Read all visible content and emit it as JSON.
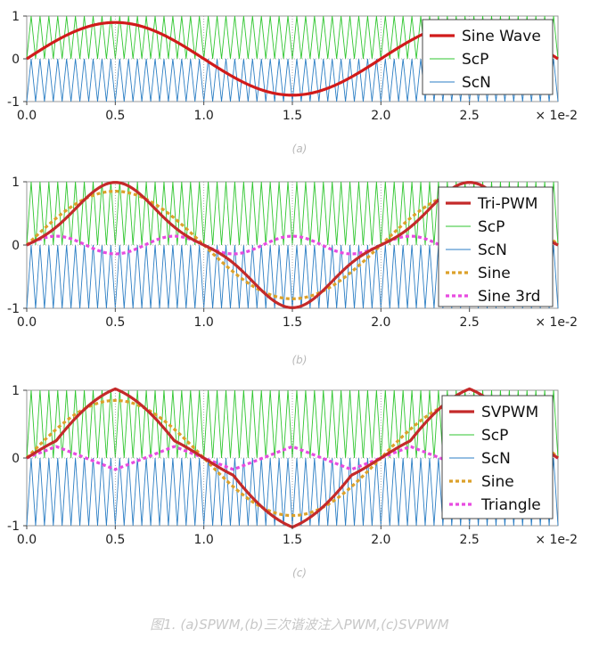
{
  "colors": {
    "sine": "#d11b1b",
    "scp": "#2fc62f",
    "scn": "#2b7ec4",
    "sine_dashed": "#dca12a",
    "third": "#e84be0",
    "grid": "#9a9a9a"
  },
  "captions": {
    "a": "(a)",
    "b": "(b)",
    "c": "(c)",
    "figure": "图1. (a)SPWM,(b)三次谐波注入PWM,(c)SVPWM"
  },
  "chart_data": [
    {
      "type": "line",
      "panel": "a",
      "x_range": [
        0,
        0.03
      ],
      "ylim": [
        -1,
        1
      ],
      "x_ticks": [
        "0.0",
        "0.5",
        "1.0",
        "1.5",
        "2.0",
        "2.5"
      ],
      "x_tick_values": [
        0,
        0.005,
        0.01,
        0.015,
        0.02,
        0.025
      ],
      "x_multiplier": "× 1e-2",
      "y_ticks": [
        "1",
        "0",
        "-1"
      ],
      "legend_position": "top-right",
      "carrier_frequency_hz": 2000,
      "series": [
        {
          "name": "Sine Wave",
          "style": "solid-thick",
          "color": "#d11b1b",
          "amplitude": 0.85,
          "frequency_hz": 50
        },
        {
          "name": "ScP",
          "style": "carrier-positive",
          "color": "#2fc62f",
          "range": [
            0,
            1
          ]
        },
        {
          "name": "ScN",
          "style": "carrier-negative",
          "color": "#2b7ec4",
          "range": [
            -1,
            0
          ]
        }
      ]
    },
    {
      "type": "line",
      "panel": "b",
      "x_range": [
        0,
        0.03
      ],
      "ylim": [
        -1,
        1
      ],
      "x_ticks": [
        "0.0",
        "0.5",
        "1.0",
        "1.5",
        "2.0",
        "2.5"
      ],
      "x_tick_values": [
        0,
        0.005,
        0.01,
        0.015,
        0.02,
        0.025
      ],
      "x_multiplier": "× 1e-2",
      "y_ticks": [
        "1",
        "0",
        "-1"
      ],
      "legend_position": "right",
      "carrier_frequency_hz": 2000,
      "series": [
        {
          "name": "Tri-PWM",
          "style": "solid-thick",
          "color": "#c42a2a",
          "composition": "Sine - Sine 3rd"
        },
        {
          "name": "ScP",
          "style": "carrier-positive",
          "color": "#2fc62f",
          "range": [
            0,
            1
          ]
        },
        {
          "name": "ScN",
          "style": "carrier-negative",
          "color": "#2b7ec4",
          "range": [
            -1,
            0
          ]
        },
        {
          "name": "Sine",
          "style": "dotted-thick",
          "color": "#dca12a",
          "amplitude": 0.85,
          "frequency_hz": 50
        },
        {
          "name": "Sine 3rd",
          "style": "dotted-thick",
          "color": "#e84be0",
          "amplitude": 0.14,
          "frequency_hz": 150
        }
      ]
    },
    {
      "type": "line",
      "panel": "c",
      "x_range": [
        0,
        0.03
      ],
      "ylim": [
        -1,
        1
      ],
      "x_ticks": [
        "0.0",
        "0.5",
        "1.0",
        "1.5",
        "2.0",
        "2.5"
      ],
      "x_tick_values": [
        0,
        0.005,
        0.01,
        0.015,
        0.02,
        0.025
      ],
      "x_multiplier": "× 1e-2",
      "y_ticks": [
        "1",
        "0",
        "-1"
      ],
      "legend_position": "right",
      "carrier_frequency_hz": 2000,
      "series": [
        {
          "name": "SVPWM",
          "style": "solid-thick",
          "color": "#c42a2a",
          "composition": "Sine - Triangle"
        },
        {
          "name": "ScP",
          "style": "carrier-positive",
          "color": "#2fc62f",
          "range": [
            0,
            1
          ]
        },
        {
          "name": "ScN",
          "style": "carrier-negative",
          "color": "#2b7ec4",
          "range": [
            -1,
            0
          ]
        },
        {
          "name": "Sine",
          "style": "dotted-thick",
          "color": "#dca12a",
          "amplitude": 0.85,
          "frequency_hz": 50
        },
        {
          "name": "Triangle",
          "style": "dotted-thick",
          "color": "#e84be0",
          "amplitude": 0.17,
          "frequency_hz": 150
        }
      ]
    }
  ]
}
